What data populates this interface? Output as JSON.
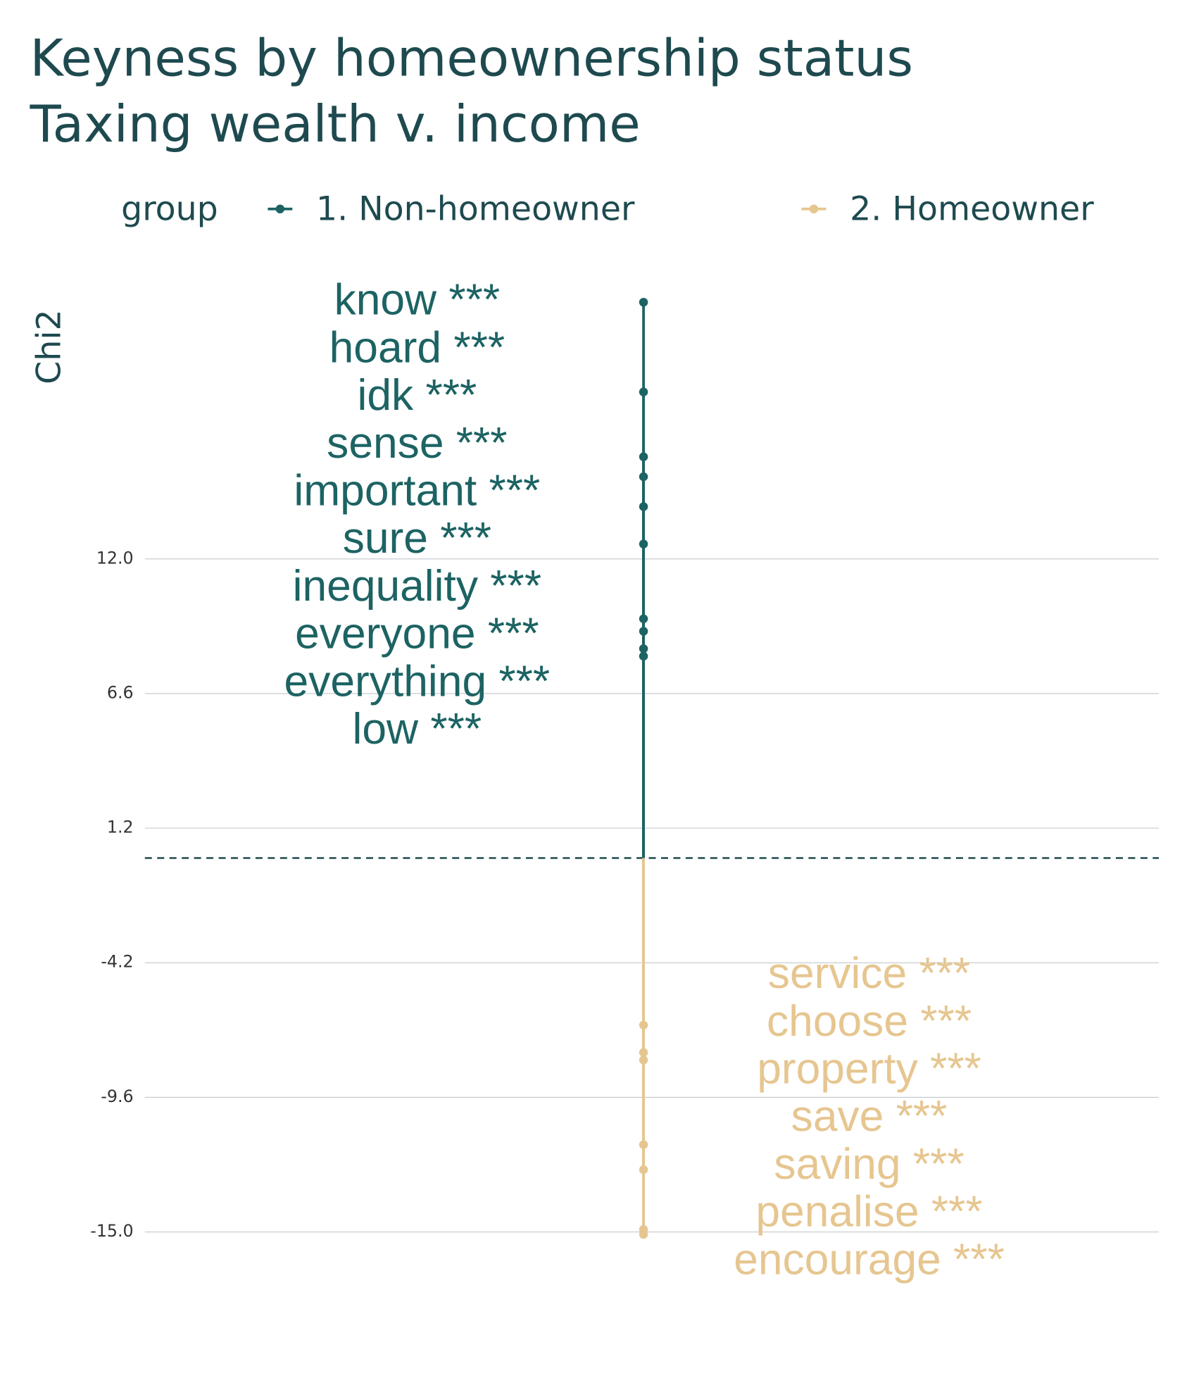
{
  "chart_data": {
    "type": "keyness",
    "title": [
      "Keyness by homeownership status",
      "Taxing wealth v. income"
    ],
    "legend_title": "group",
    "ylabel": "Chi2",
    "ylim": [
      -15.6,
      22.8
    ],
    "yticks": [
      {
        "value": 12,
        "label": "12.0"
      },
      6.6,
      1.2,
      -4.2,
      -9.6,
      {
        "value": -15,
        "label": "-15.0"
      }
    ],
    "grid": true,
    "series": [
      {
        "name": "1. Non-homeowner",
        "color": "#1d6363",
        "words": [
          "know ***",
          "hoard ***",
          "idk ***",
          "sense ***",
          "important ***",
          "sure ***",
          "inequality ***",
          "everyone ***",
          "everything ***",
          "low ***"
        ],
        "values": [
          22.3,
          18.7,
          16.1,
          15.3,
          14.1,
          12.6,
          9.6,
          9.1,
          8.4,
          8.1
        ]
      },
      {
        "name": "2. Homeowner",
        "color": "#e6c690",
        "words": [
          "service ***",
          "choose ***",
          "property ***",
          "save ***",
          "saving ***",
          "penalise ***",
          "encourage ***"
        ],
        "values": [
          -6.7,
          -7.8,
          -8.1,
          -11.5,
          -12.5,
          -14.9,
          -15.1
        ]
      }
    ]
  }
}
